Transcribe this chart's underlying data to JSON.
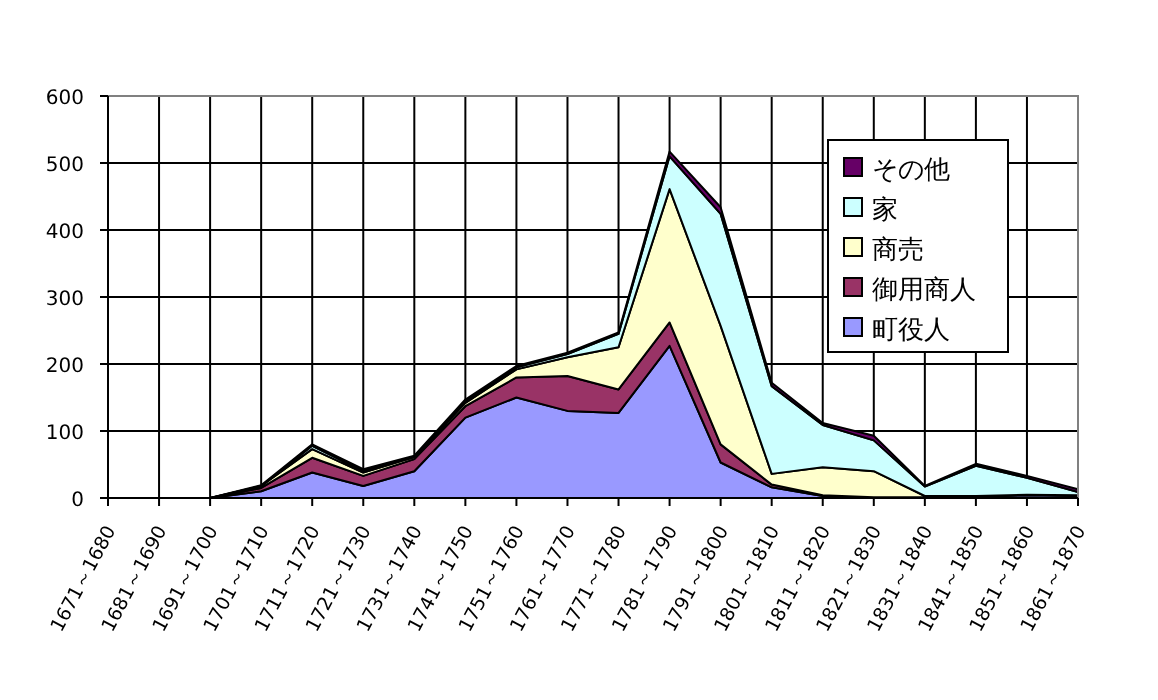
{
  "chart_data": {
    "type": "area",
    "stacked": true,
    "categories": [
      "1671～1680",
      "1681～1690",
      "1691～1700",
      "1701～1710",
      "1711～1720",
      "1721～1730",
      "1731～1740",
      "1741～1750",
      "1751～1760",
      "1761～1770",
      "1771～1780",
      "1781～1790",
      "1791～1800",
      "1801～1810",
      "1811～1820",
      "1821～1830",
      "1831～1840",
      "1841～1850",
      "1851～1860",
      "1861～1870"
    ],
    "series": [
      {
        "name": "町役人",
        "color": "#9999ff",
        "values": [
          0,
          0,
          0,
          10,
          38,
          18,
          40,
          120,
          150,
          130,
          127,
          227,
          53,
          16,
          3,
          1,
          1,
          2,
          4,
          3
        ]
      },
      {
        "name": "御用商人",
        "color": "#993366",
        "values": [
          0,
          0,
          0,
          5,
          22,
          15,
          18,
          17,
          30,
          52,
          35,
          35,
          27,
          4,
          1,
          0,
          0,
          1,
          1,
          1
        ]
      },
      {
        "name": "商売",
        "color": "#ffffcc",
        "values": [
          0,
          0,
          0,
          3,
          13,
          5,
          3,
          5,
          12,
          28,
          63,
          199,
          177,
          16,
          42,
          39,
          2,
          0,
          0,
          0
        ]
      },
      {
        "name": "家",
        "color": "#ccffff",
        "values": [
          0,
          0,
          0,
          0,
          5,
          2,
          1,
          3,
          3,
          5,
          20,
          49,
          167,
          131,
          63,
          46,
          14,
          45,
          25,
          5
        ]
      },
      {
        "name": "その他",
        "color": "#660066",
        "values": [
          0,
          0,
          0,
          1,
          2,
          3,
          1,
          2,
          2,
          2,
          2,
          7,
          10,
          5,
          3,
          7,
          1,
          3,
          3,
          4
        ]
      }
    ],
    "ylim": [
      0,
      600
    ],
    "yticks": [
      0,
      100,
      200,
      300,
      400,
      500,
      600
    ],
    "grid": true,
    "legend": "top right"
  }
}
